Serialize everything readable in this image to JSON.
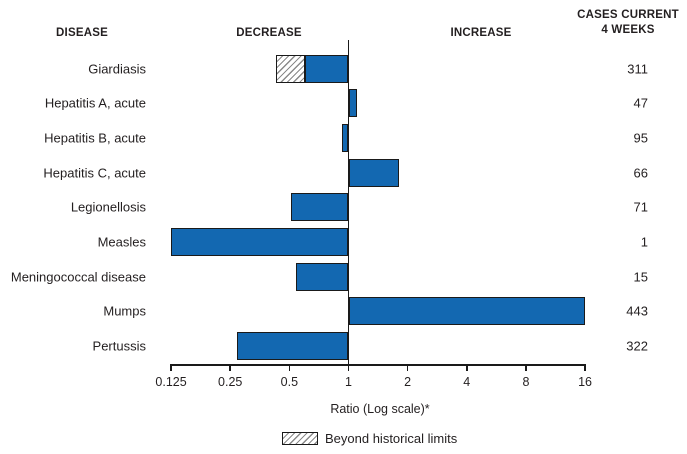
{
  "header": {
    "disease": "DISEASE",
    "decrease": "DECREASE",
    "increase": "INCREASE",
    "cases_line1": "CASES CURRENT",
    "cases_line2": "4 WEEKS"
  },
  "chart_data": {
    "type": "bar",
    "orientation": "horizontal",
    "scale": "log2",
    "baseline_ratio": 1,
    "xlabel": "Ratio (Log scale)*",
    "xlim": [
      0.125,
      16
    ],
    "ticks": [
      0.125,
      0.25,
      0.5,
      1,
      2,
      4,
      8,
      16
    ],
    "tick_labels": [
      "0.125",
      "0.25",
      "0.5",
      "1",
      "2",
      "4",
      "8",
      "16"
    ],
    "colors": {
      "bar": "#1368b1",
      "border": "#1a1a1a"
    },
    "legend": [
      {
        "label": "Beyond historical limits",
        "style": "hatched"
      }
    ],
    "rows": [
      {
        "disease": "Giardiasis",
        "cases": "311",
        "ratio": 0.43,
        "beyond_historical_limits": true,
        "hatch_to_ratio": 0.6
      },
      {
        "disease": "Hepatitis A, acute",
        "cases": "47",
        "ratio": 1.11,
        "beyond_historical_limits": false
      },
      {
        "disease": "Hepatitis B, acute",
        "cases": "95",
        "ratio": 0.93,
        "beyond_historical_limits": false
      },
      {
        "disease": "Hepatitis C, acute",
        "cases": "66",
        "ratio": 1.8,
        "beyond_historical_limits": false
      },
      {
        "disease": "Legionellosis",
        "cases": "71",
        "ratio": 0.51,
        "beyond_historical_limits": false
      },
      {
        "disease": "Measles",
        "cases": "1",
        "ratio": 0.125,
        "beyond_historical_limits": false
      },
      {
        "disease": "Meningococcal disease",
        "cases": "15",
        "ratio": 0.54,
        "beyond_historical_limits": false
      },
      {
        "disease": "Mumps",
        "cases": "443",
        "ratio": 16,
        "beyond_historical_limits": false
      },
      {
        "disease": "Pertussis",
        "cases": "322",
        "ratio": 0.27,
        "beyond_historical_limits": false
      }
    ]
  }
}
